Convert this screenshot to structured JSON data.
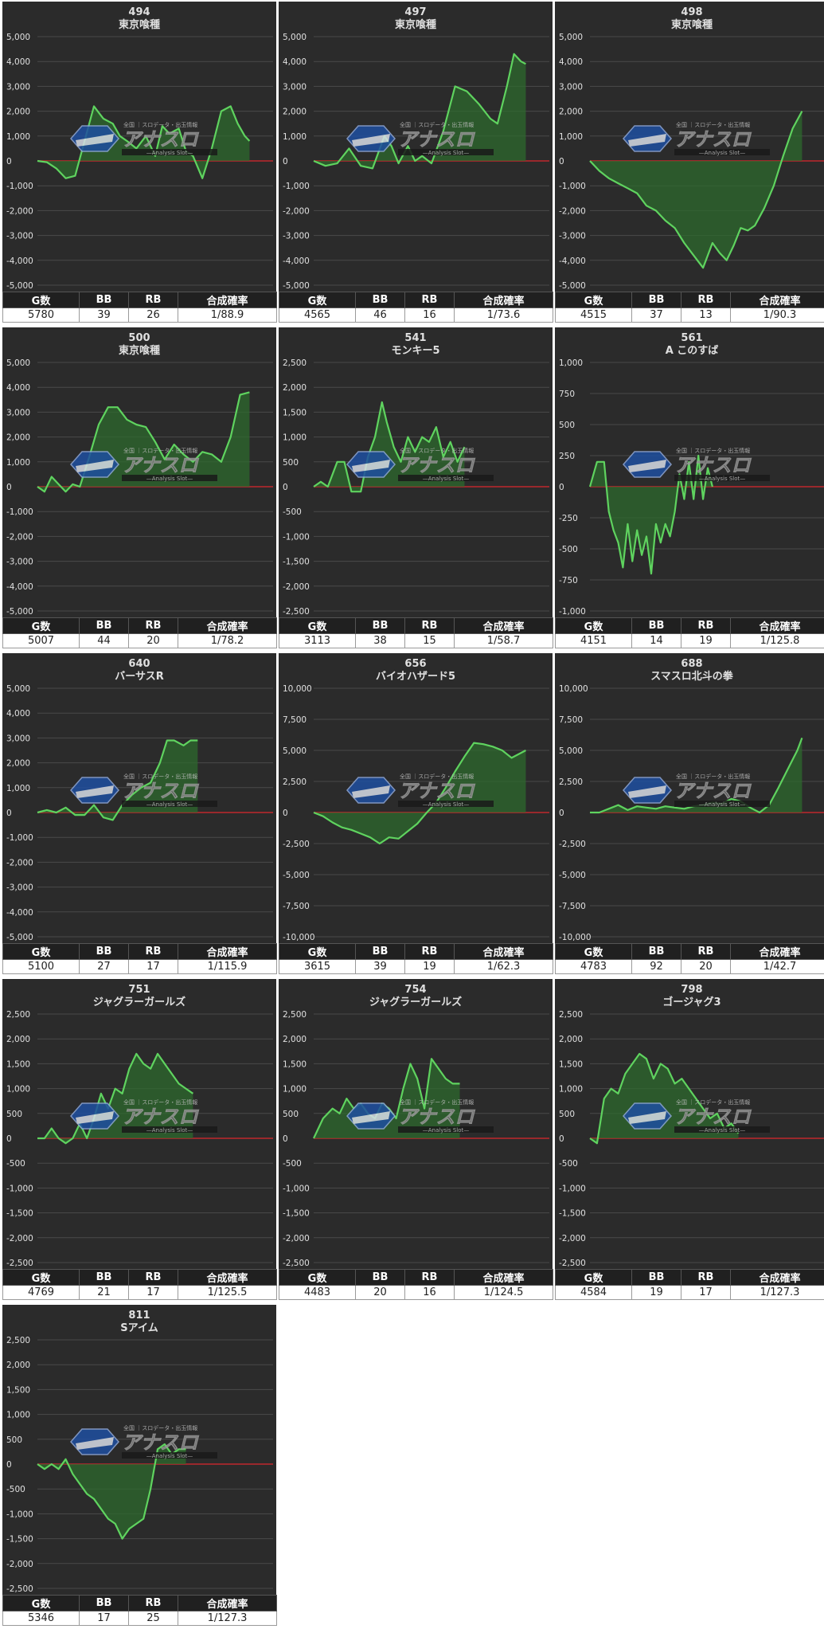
{
  "table_headers": [
    "G数",
    "BB",
    "RB",
    "合成確率"
  ],
  "watermark": {
    "title": "アナスロ",
    "subtitle": "—Analysis Slot—",
    "tagline": "全国 ｜スロデータ・出玉情報"
  },
  "colors": {
    "background": "#2b2b2b",
    "line": "#5fd35f",
    "fill": "#2e6a2e",
    "zero_line": "#c0282c",
    "grid": "#4a4a4a",
    "text": "#e0e0e0"
  },
  "chart_data": [
    {
      "type": "area",
      "machine": "494",
      "title": "東京喰種",
      "ylim": [
        -5000,
        5000
      ],
      "yticks": [
        5000,
        4000,
        3000,
        2000,
        1000,
        0,
        -1000,
        -2000,
        -3000,
        -4000,
        -5000
      ],
      "x": [
        0,
        0.04,
        0.08,
        0.12,
        0.16,
        0.2,
        0.24,
        0.28,
        0.32,
        0.35,
        0.38,
        0.42,
        0.46,
        0.5,
        0.53,
        0.56,
        0.6,
        0.63,
        0.66,
        0.7,
        0.74,
        0.78,
        0.82,
        0.85,
        0.88,
        0.9
      ],
      "values": [
        0,
        -50,
        -300,
        -700,
        -600,
        800,
        2200,
        1700,
        1500,
        1000,
        800,
        500,
        1000,
        200,
        1400,
        1100,
        1300,
        400,
        200,
        -700,
        500,
        2000,
        2200,
        1500,
        1000,
        800
      ],
      "stats": {
        "games": "5780",
        "bb": "39",
        "rb": "26",
        "ratio": "1/88.9"
      }
    },
    {
      "type": "area",
      "machine": "497",
      "title": "東京喰種",
      "ylim": [
        -5000,
        5000
      ],
      "yticks": [
        5000,
        4000,
        3000,
        2000,
        1000,
        0,
        -1000,
        -2000,
        -3000,
        -4000,
        -5000
      ],
      "x": [
        0,
        0.05,
        0.1,
        0.15,
        0.2,
        0.25,
        0.3,
        0.33,
        0.36,
        0.4,
        0.43,
        0.46,
        0.5,
        0.55,
        0.6,
        0.65,
        0.7,
        0.75,
        0.78,
        0.82,
        0.85,
        0.88,
        0.9
      ],
      "values": [
        0,
        -200,
        -100,
        500,
        -200,
        -300,
        1000,
        600,
        -100,
        600,
        0,
        200,
        -100,
        1200,
        3000,
        2800,
        2300,
        1700,
        1500,
        3000,
        4300,
        4000,
        3900
      ],
      "stats": {
        "games": "4565",
        "bb": "46",
        "rb": "16",
        "ratio": "1/73.6"
      }
    },
    {
      "type": "area",
      "machine": "498",
      "title": "東京喰種",
      "ylim": [
        -5000,
        5000
      ],
      "yticks": [
        5000,
        4000,
        3000,
        2000,
        1000,
        0,
        -1000,
        -2000,
        -3000,
        -4000,
        -5000
      ],
      "x": [
        0,
        0.04,
        0.08,
        0.12,
        0.16,
        0.2,
        0.24,
        0.28,
        0.32,
        0.36,
        0.4,
        0.44,
        0.48,
        0.52,
        0.55,
        0.58,
        0.61,
        0.64,
        0.67,
        0.7,
        0.74,
        0.78,
        0.82,
        0.86,
        0.9
      ],
      "values": [
        0,
        -400,
        -700,
        -900,
        -1100,
        -1300,
        -1800,
        -2000,
        -2400,
        -2700,
        -3300,
        -3800,
        -4300,
        -3300,
        -3700,
        -4000,
        -3400,
        -2700,
        -2800,
        -2600,
        -1900,
        -1000,
        200,
        1300,
        2000
      ],
      "stats": {
        "games": "4515",
        "bb": "37",
        "rb": "13",
        "ratio": "1/90.3"
      }
    },
    {
      "type": "area",
      "machine": "500",
      "title": "東京喰種",
      "ylim": [
        -5000,
        5000
      ],
      "yticks": [
        5000,
        4000,
        3000,
        2000,
        1000,
        0,
        -1000,
        -2000,
        -3000,
        -4000,
        -5000
      ],
      "x": [
        0,
        0.03,
        0.06,
        0.09,
        0.12,
        0.15,
        0.18,
        0.22,
        0.26,
        0.3,
        0.34,
        0.38,
        0.42,
        0.46,
        0.5,
        0.54,
        0.58,
        0.62,
        0.66,
        0.7,
        0.74,
        0.78,
        0.82,
        0.86,
        0.9
      ],
      "values": [
        0,
        -200,
        400,
        100,
        -200,
        100,
        0,
        1200,
        2500,
        3200,
        3200,
        2700,
        2500,
        2400,
        1800,
        1100,
        1700,
        1300,
        1000,
        1400,
        1300,
        1000,
        2000,
        3700,
        3800
      ],
      "stats": {
        "games": "5007",
        "bb": "44",
        "rb": "20",
        "ratio": "1/78.2"
      }
    },
    {
      "type": "area",
      "machine": "541",
      "title": "モンキー5",
      "ylim": [
        -2500,
        2500
      ],
      "yticks": [
        2500,
        2000,
        1500,
        1000,
        500,
        0,
        -500,
        -1000,
        -1500,
        -2000,
        -2500
      ],
      "x": [
        0,
        0.03,
        0.06,
        0.1,
        0.13,
        0.16,
        0.2,
        0.23,
        0.26,
        0.29,
        0.31,
        0.34,
        0.37,
        0.4,
        0.43,
        0.46,
        0.49,
        0.52,
        0.55,
        0.58,
        0.61,
        0.64
      ],
      "values": [
        0,
        100,
        0,
        500,
        500,
        -100,
        -100,
        600,
        1000,
        1700,
        1300,
        800,
        500,
        1000,
        700,
        1000,
        900,
        1200,
        600,
        900,
        500,
        800
      ],
      "stats": {
        "games": "3113",
        "bb": "38",
        "rb": "15",
        "ratio": "1/58.7"
      }
    },
    {
      "type": "area",
      "machine": "561",
      "title": "A このすば",
      "ylim": [
        -1000,
        1000
      ],
      "yticks": [
        1000,
        750,
        500,
        250,
        0,
        -250,
        -500,
        -750,
        -1000
      ],
      "x": [
        0,
        0.03,
        0.06,
        0.08,
        0.1,
        0.12,
        0.14,
        0.16,
        0.18,
        0.2,
        0.22,
        0.24,
        0.26,
        0.28,
        0.3,
        0.32,
        0.34,
        0.36,
        0.38,
        0.4,
        0.42,
        0.44,
        0.46,
        0.48,
        0.5,
        0.52
      ],
      "values": [
        0,
        200,
        200,
        -200,
        -350,
        -450,
        -650,
        -300,
        -600,
        -350,
        -550,
        -400,
        -700,
        -300,
        -450,
        -300,
        -400,
        -200,
        100,
        -100,
        200,
        -100,
        250,
        -100,
        150,
        0
      ],
      "stats": {
        "games": "4151",
        "bb": "14",
        "rb": "19",
        "ratio": "1/125.8"
      }
    },
    {
      "type": "area",
      "machine": "640",
      "title": "バーサスR",
      "ylim": [
        -5000,
        5000
      ],
      "yticks": [
        5000,
        4000,
        3000,
        2000,
        1000,
        0,
        -1000,
        -2000,
        -3000,
        -4000,
        -5000
      ],
      "x": [
        0,
        0.04,
        0.08,
        0.12,
        0.16,
        0.2,
        0.24,
        0.28,
        0.32,
        0.36,
        0.4,
        0.44,
        0.48,
        0.52,
        0.55,
        0.58,
        0.62,
        0.65,
        0.68
      ],
      "values": [
        0,
        100,
        0,
        200,
        -100,
        -100,
        300,
        -200,
        -300,
        300,
        700,
        1000,
        1200,
        2000,
        2900,
        2900,
        2700,
        2900,
        2900
      ],
      "stats": {
        "games": "5100",
        "bb": "27",
        "rb": "17",
        "ratio": "1/115.9"
      }
    },
    {
      "type": "area",
      "machine": "656",
      "title": "バイオハザード5",
      "ylim": [
        -10000,
        10000
      ],
      "yticks": [
        10000,
        7500,
        5000,
        2500,
        0,
        -2500,
        -5000,
        -7500,
        -10000
      ],
      "x": [
        0,
        0.04,
        0.08,
        0.12,
        0.16,
        0.2,
        0.24,
        0.28,
        0.32,
        0.36,
        0.4,
        0.44,
        0.48,
        0.52,
        0.56,
        0.6,
        0.64,
        0.68,
        0.72,
        0.76,
        0.8,
        0.84,
        0.88,
        0.9
      ],
      "values": [
        0,
        -300,
        -800,
        -1200,
        -1400,
        -1700,
        -2000,
        -2500,
        -2000,
        -2100,
        -1500,
        -900,
        0,
        800,
        2000,
        3300,
        4500,
        5600,
        5500,
        5300,
        5000,
        4400,
        4800,
        5000
      ],
      "stats": {
        "games": "3615",
        "bb": "39",
        "rb": "19",
        "ratio": "1/62.3"
      }
    },
    {
      "type": "area",
      "machine": "688",
      "title": "スマスロ北斗の拳",
      "ylim": [
        -10000,
        10000
      ],
      "yticks": [
        10000,
        7500,
        5000,
        2500,
        0,
        -2500,
        -5000,
        -7500,
        -10000
      ],
      "x": [
        0,
        0.04,
        0.08,
        0.12,
        0.16,
        0.2,
        0.24,
        0.28,
        0.32,
        0.36,
        0.4,
        0.44,
        0.48,
        0.52,
        0.56,
        0.6,
        0.64,
        0.68,
        0.72,
        0.76,
        0.8,
        0.84,
        0.88,
        0.9
      ],
      "values": [
        0,
        0,
        300,
        600,
        200,
        500,
        400,
        300,
        500,
        400,
        300,
        500,
        600,
        800,
        700,
        1100,
        900,
        400,
        0,
        600,
        2000,
        3500,
        5000,
        6000
      ],
      "stats": {
        "games": "4783",
        "bb": "92",
        "rb": "20",
        "ratio": "1/42.7"
      }
    },
    {
      "type": "area",
      "machine": "751",
      "title": "ジャグラーガールズ",
      "ylim": [
        -2500,
        2500
      ],
      "yticks": [
        2500,
        2000,
        1500,
        1000,
        500,
        0,
        -500,
        -1000,
        -1500,
        -2000,
        -2500
      ],
      "x": [
        0,
        0.03,
        0.06,
        0.09,
        0.12,
        0.15,
        0.18,
        0.21,
        0.24,
        0.27,
        0.3,
        0.33,
        0.36,
        0.39,
        0.42,
        0.45,
        0.48,
        0.51,
        0.54,
        0.57,
        0.6,
        0.63,
        0.66
      ],
      "values": [
        0,
        0,
        200,
        0,
        -100,
        0,
        300,
        0,
        400,
        900,
        600,
        1000,
        900,
        1400,
        1700,
        1500,
        1400,
        1700,
        1500,
        1300,
        1100,
        1000,
        900
      ],
      "stats": {
        "games": "4769",
        "bb": "21",
        "rb": "17",
        "ratio": "1/125.5"
      }
    },
    {
      "type": "area",
      "machine": "754",
      "title": "ジャグラーガールズ",
      "ylim": [
        -2500,
        2500
      ],
      "yticks": [
        2500,
        2000,
        1500,
        1000,
        500,
        0,
        -500,
        -1000,
        -1500,
        -2000,
        -2500
      ],
      "x": [
        0,
        0.04,
        0.08,
        0.11,
        0.14,
        0.17,
        0.2,
        0.23,
        0.26,
        0.29,
        0.32,
        0.35,
        0.38,
        0.41,
        0.44,
        0.47,
        0.5,
        0.53,
        0.56,
        0.59,
        0.62
      ],
      "values": [
        0,
        400,
        600,
        500,
        800,
        600,
        700,
        500,
        400,
        700,
        600,
        400,
        1000,
        1500,
        1200,
        600,
        1600,
        1400,
        1200,
        1100,
        1100
      ],
      "stats": {
        "games": "4483",
        "bb": "20",
        "rb": "16",
        "ratio": "1/124.5"
      }
    },
    {
      "type": "area",
      "machine": "798",
      "title": "ゴージャグ3",
      "ylim": [
        -2500,
        2500
      ],
      "yticks": [
        2500,
        2000,
        1500,
        1000,
        500,
        0,
        -500,
        -1000,
        -1500,
        -2000,
        -2500
      ],
      "x": [
        0,
        0.03,
        0.06,
        0.09,
        0.12,
        0.15,
        0.18,
        0.21,
        0.24,
        0.27,
        0.3,
        0.33,
        0.36,
        0.39,
        0.42,
        0.45,
        0.48,
        0.51,
        0.54,
        0.57,
        0.6,
        0.63
      ],
      "values": [
        0,
        -100,
        800,
        1000,
        900,
        1300,
        1500,
        1700,
        1600,
        1200,
        1500,
        1400,
        1100,
        1200,
        1000,
        800,
        600,
        400,
        500,
        200,
        300,
        100
      ],
      "stats": {
        "games": "4584",
        "bb": "19",
        "rb": "17",
        "ratio": "1/127.3"
      }
    },
    {
      "type": "area",
      "machine": "811",
      "title": "Sアイム",
      "ylim": [
        -2500,
        2500
      ],
      "yticks": [
        2500,
        2000,
        1500,
        1000,
        500,
        0,
        -500,
        -1000,
        -1500,
        -2000,
        -2500
      ],
      "x": [
        0,
        0.03,
        0.06,
        0.09,
        0.12,
        0.15,
        0.18,
        0.21,
        0.24,
        0.27,
        0.3,
        0.33,
        0.36,
        0.39,
        0.42,
        0.45,
        0.48,
        0.51,
        0.54,
        0.57,
        0.6,
        0.63
      ],
      "values": [
        0,
        -100,
        0,
        -100,
        100,
        -200,
        -400,
        -600,
        -700,
        -900,
        -1100,
        -1200,
        -1500,
        -1300,
        -1200,
        -1100,
        -500,
        300,
        400,
        200,
        300,
        300
      ],
      "stats": {
        "games": "5346",
        "bb": "17",
        "rb": "25",
        "ratio": "1/127.3"
      }
    }
  ]
}
